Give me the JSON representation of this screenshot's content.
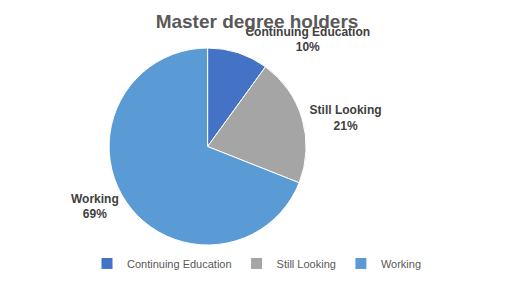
{
  "chart_data": {
    "type": "pie",
    "title": "Master degree holders",
    "categories": [
      "Continuing Education",
      "Still Looking",
      "Working"
    ],
    "values": [
      10,
      21,
      69
    ],
    "value_labels": [
      "10%",
      "21%",
      "69%"
    ],
    "colors": [
      "#4472c4",
      "#a5a5a5",
      "#5b9bd5"
    ],
    "data_labels": true,
    "legend": "bottom"
  }
}
